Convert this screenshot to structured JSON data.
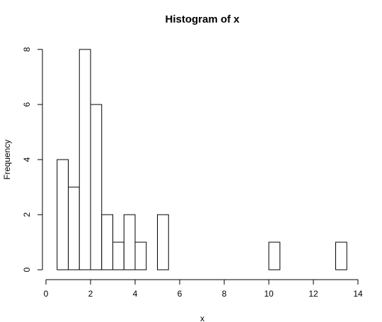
{
  "chart_data": {
    "type": "bar",
    "title": "Histogram of x",
    "xlabel": "x",
    "ylabel": "Frequency",
    "bin_width": 0.5,
    "bins": [
      {
        "x0": 0.5,
        "x1": 1.0,
        "count": 4
      },
      {
        "x0": 1.0,
        "x1": 1.5,
        "count": 3
      },
      {
        "x0": 1.5,
        "x1": 2.0,
        "count": 8
      },
      {
        "x0": 2.0,
        "x1": 2.5,
        "count": 6
      },
      {
        "x0": 2.5,
        "x1": 3.0,
        "count": 2
      },
      {
        "x0": 3.0,
        "x1": 3.5,
        "count": 1
      },
      {
        "x0": 3.5,
        "x1": 4.0,
        "count": 2
      },
      {
        "x0": 4.0,
        "x1": 4.5,
        "count": 1
      },
      {
        "x0": 4.5,
        "x1": 5.0,
        "count": 0
      },
      {
        "x0": 5.0,
        "x1": 5.5,
        "count": 2
      },
      {
        "x0": 5.5,
        "x1": 6.0,
        "count": 0
      },
      {
        "x0": 6.0,
        "x1": 6.5,
        "count": 0
      },
      {
        "x0": 6.5,
        "x1": 7.0,
        "count": 0
      },
      {
        "x0": 7.0,
        "x1": 7.5,
        "count": 0
      },
      {
        "x0": 7.5,
        "x1": 8.0,
        "count": 0
      },
      {
        "x0": 8.0,
        "x1": 8.5,
        "count": 0
      },
      {
        "x0": 8.5,
        "x1": 9.0,
        "count": 0
      },
      {
        "x0": 9.0,
        "x1": 9.5,
        "count": 0
      },
      {
        "x0": 9.5,
        "x1": 10.0,
        "count": 0
      },
      {
        "x0": 10.0,
        "x1": 10.5,
        "count": 1
      },
      {
        "x0": 10.5,
        "x1": 11.0,
        "count": 0
      },
      {
        "x0": 11.0,
        "x1": 11.5,
        "count": 0
      },
      {
        "x0": 11.5,
        "x1": 12.0,
        "count": 0
      },
      {
        "x0": 12.0,
        "x1": 12.5,
        "count": 0
      },
      {
        "x0": 12.5,
        "x1": 13.0,
        "count": 0
      },
      {
        "x0": 13.0,
        "x1": 13.5,
        "count": 1
      }
    ],
    "xlim": [
      0,
      14
    ],
    "ylim": [
      0,
      8
    ],
    "x_ticks": [
      0,
      2,
      4,
      6,
      8,
      10,
      12,
      14
    ],
    "y_ticks": [
      0,
      2,
      4,
      6,
      8
    ],
    "grid": false,
    "legend": "none"
  }
}
